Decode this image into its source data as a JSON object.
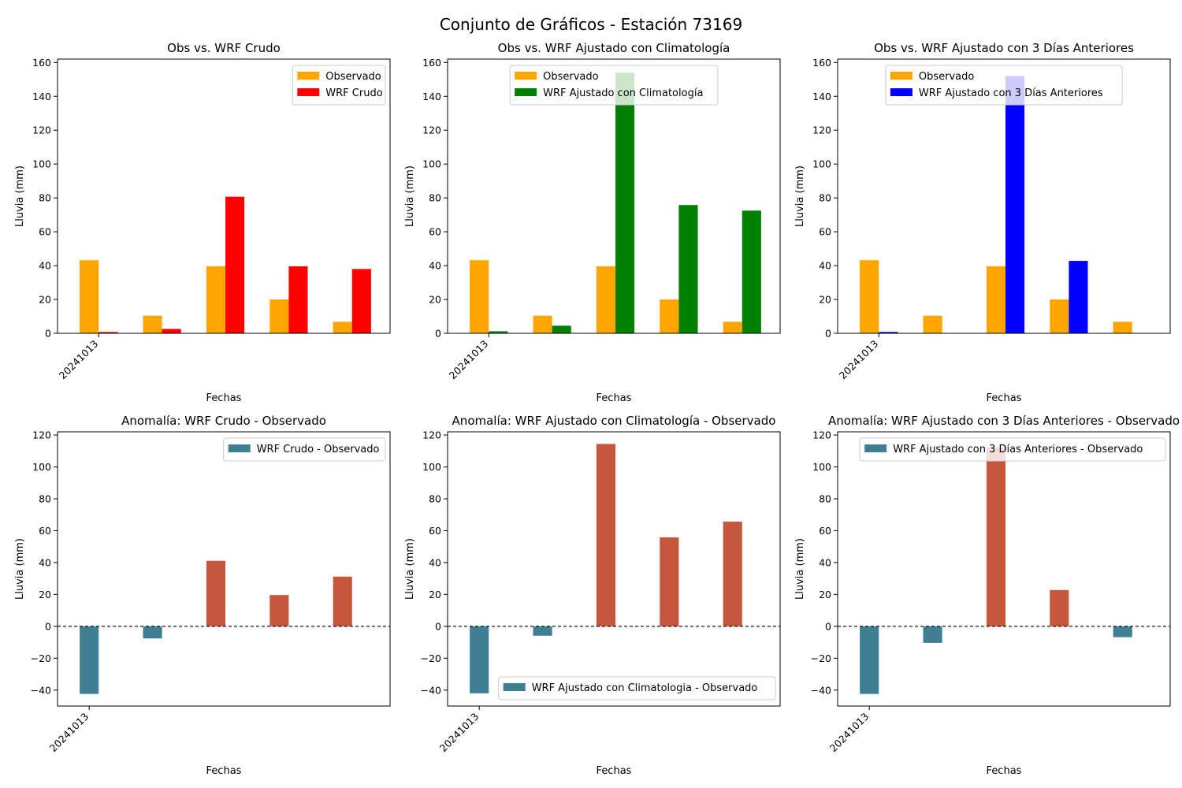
{
  "figure": {
    "title": "Conjunto de Gráficos - Estación 73169",
    "colors": {
      "positive": "#c4573c",
      "negative": "#3f7f93"
    }
  },
  "chart_data": [
    {
      "type": "bar",
      "title": "Obs vs. WRF Crudo",
      "xlabel": "Fechas",
      "ylabel": "Lluvia (mm)",
      "ylim": [
        0,
        162
      ],
      "yticks": [
        0,
        20,
        40,
        60,
        80,
        100,
        120,
        140,
        160
      ],
      "categories": [
        "20241013",
        "",
        "",
        "",
        ""
      ],
      "legend": "top-right",
      "series": [
        {
          "name": "Observado",
          "color": "#ffa500",
          "values": [
            43.2,
            10.4,
            39.6,
            20.0,
            6.8
          ]
        },
        {
          "name": "WRF Crudo",
          "color": "#ff0000",
          "values": [
            0.8,
            2.6,
            80.7,
            39.6,
            38.0
          ]
        }
      ]
    },
    {
      "type": "bar",
      "title": "Obs vs. WRF Ajustado con Climatología",
      "xlabel": "Fechas",
      "ylabel": "Lluvia (mm)",
      "ylim": [
        0,
        162
      ],
      "yticks": [
        0,
        20,
        40,
        60,
        80,
        100,
        120,
        140,
        160
      ],
      "categories": [
        "20241013",
        "",
        "",
        "",
        ""
      ],
      "legend": "top-center",
      "series": [
        {
          "name": "Observado",
          "color": "#ffa500",
          "values": [
            43.2,
            10.4,
            39.6,
            20.0,
            6.8
          ]
        },
        {
          "name": "WRF Ajustado con Climatología",
          "color": "#008000",
          "values": [
            1.2,
            4.5,
            154.0,
            75.8,
            72.5
          ]
        }
      ]
    },
    {
      "type": "bar",
      "title": "Obs vs. WRF Ajustado con 3 Días Anteriores",
      "xlabel": "Fechas",
      "ylabel": "Lluvia (mm)",
      "ylim": [
        0,
        162
      ],
      "yticks": [
        0,
        20,
        40,
        60,
        80,
        100,
        120,
        140,
        160
      ],
      "categories": [
        "20241013",
        "",
        "",
        "",
        ""
      ],
      "legend": "top-center",
      "series": [
        {
          "name": "Observado",
          "color": "#ffa500",
          "values": [
            43.2,
            10.4,
            39.6,
            20.0,
            6.8
          ]
        },
        {
          "name": "WRF Ajustado con 3 Días Anteriores",
          "color": "#0000ff",
          "values": [
            0.8,
            0.0,
            152.0,
            42.8,
            0.0
          ]
        }
      ]
    },
    {
      "type": "bar",
      "title": "Anomalía: WRF Crudo - Observado",
      "xlabel": "Fechas",
      "ylabel": "Lluvia (mm)",
      "ylim": [
        -50,
        122
      ],
      "yticks": [
        -40,
        -20,
        0,
        20,
        40,
        60,
        80,
        100,
        120
      ],
      "categories": [
        "20241013",
        "",
        "",
        "",
        ""
      ],
      "legend": "top-right",
      "zero_line": true,
      "series": [
        {
          "name": "WRF Crudo - Observado",
          "values": [
            -42.4,
            -7.6,
            41.1,
            19.6,
            31.2
          ]
        }
      ]
    },
    {
      "type": "bar",
      "title": "Anomalía: WRF Ajustado con Climatología - Observado",
      "xlabel": "Fechas",
      "ylabel": "Lluvia (mm)",
      "ylim": [
        -50,
        122
      ],
      "yticks": [
        -40,
        -20,
        0,
        20,
        40,
        60,
        80,
        100,
        120
      ],
      "categories": [
        "20241013",
        "",
        "",
        "",
        ""
      ],
      "legend": "bottom-right",
      "zero_line": true,
      "series": [
        {
          "name": "WRF Ajustado con Climatologia - Observado",
          "values": [
            -42.0,
            -5.9,
            114.4,
            55.8,
            65.7
          ]
        }
      ]
    },
    {
      "type": "bar",
      "title": "Anomalía: WRF Ajustado con 3 Días Anteriores - Observado",
      "xlabel": "Fechas",
      "ylabel": "Lluvia (mm)",
      "ylim": [
        -50,
        122
      ],
      "yticks": [
        -40,
        -20,
        0,
        20,
        40,
        60,
        80,
        100,
        120
      ],
      "categories": [
        "20241013",
        "",
        "",
        "",
        ""
      ],
      "legend": "top-right",
      "zero_line": true,
      "series": [
        {
          "name": "WRF Ajustado con 3 Días Anteriores - Observado",
          "values": [
            -42.4,
            -10.4,
            112.4,
            22.8,
            -6.8
          ]
        }
      ]
    }
  ]
}
